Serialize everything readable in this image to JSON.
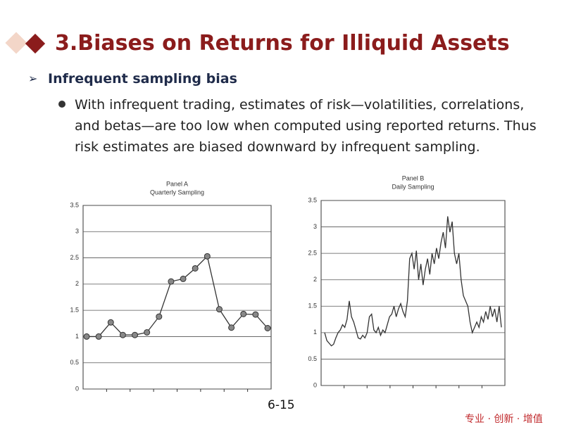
{
  "title": "3.Biases on Returns for Illiquid Assets",
  "subheading": "Infrequent sampling bias",
  "bullet": "With infrequent trading, estimates of risk—volatilities, correlations, and betas—are too low when computed using reported returns. Thus risk estimates are biased downward by infrequent sampling.",
  "page_number": "6-15",
  "footer": "专业 · 创新 · 增值",
  "chart_data": [
    {
      "type": "line",
      "title": "Panel A",
      "subtitle": "Quarterly Sampling",
      "color": "#333333",
      "markers": true,
      "grid": true,
      "values": [
        1.0,
        1.0,
        1.27,
        1.03,
        1.03,
        1.08,
        1.38,
        2.05,
        2.1,
        2.3,
        2.53,
        1.52,
        1.17,
        1.43,
        1.42,
        1.16
      ],
      "ylim": [
        0,
        3.5
      ],
      "yticks": [
        0,
        0.5,
        1,
        1.5,
        2,
        2.5,
        3,
        3.5
      ]
    },
    {
      "type": "line",
      "title": "Panel B",
      "subtitle": "Daily Sampling",
      "color": "#333333",
      "markers": false,
      "grid": true,
      "values": [
        1.0,
        0.85,
        0.8,
        0.75,
        0.78,
        0.9,
        1.0,
        1.05,
        1.15,
        1.1,
        1.25,
        1.6,
        1.3,
        1.2,
        1.05,
        0.9,
        0.88,
        0.95,
        0.9,
        1.0,
        1.3,
        1.35,
        1.05,
        1.0,
        1.1,
        0.95,
        1.05,
        1.0,
        1.15,
        1.3,
        1.35,
        1.5,
        1.3,
        1.45,
        1.55,
        1.4,
        1.3,
        1.6,
        2.4,
        2.5,
        2.2,
        2.55,
        2.0,
        2.3,
        1.9,
        2.2,
        2.4,
        2.1,
        2.5,
        2.3,
        2.6,
        2.4,
        2.7,
        2.9,
        2.6,
        3.2,
        2.9,
        3.1,
        2.5,
        2.3,
        2.5,
        2.0,
        1.7,
        1.6,
        1.5,
        1.2,
        1.0,
        1.1,
        1.2,
        1.1,
        1.3,
        1.2,
        1.4,
        1.25,
        1.5,
        1.3,
        1.45,
        1.2,
        1.5,
        1.1
      ],
      "ylim": [
        0,
        3.5
      ],
      "yticks": [
        0,
        0.5,
        1,
        1.5,
        2,
        2.5,
        3,
        3.5
      ]
    }
  ]
}
